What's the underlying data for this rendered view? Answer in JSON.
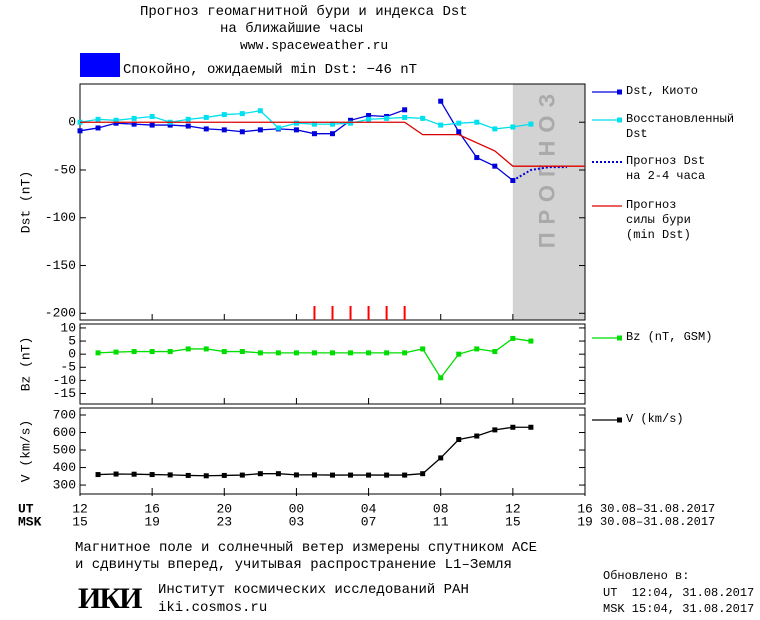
{
  "header": {
    "title": "Прогноз геомагнитной бури и индекса Dst",
    "subtitle": "на ближайшие часы",
    "site": "www.spaceweather.ru",
    "status_color": "#0000ff",
    "status": "Спокойно, ожидаемый min Dst: −46 nT"
  },
  "chart_data": [
    {
      "type": "line",
      "ylabel": "Dst (nT)",
      "xlim": [
        0,
        28
      ],
      "ylim": [
        -207,
        40
      ],
      "yticks": [
        0,
        -50,
        -100,
        -150,
        -200
      ],
      "forecast_region": [
        24,
        28
      ],
      "forecast_label": "ПРОГНОЗ",
      "event_marks_x": [
        13,
        14,
        15,
        16,
        17,
        18
      ],
      "event_color": "#ff0000",
      "series": [
        {
          "name": "Dst, Киото",
          "color": "#0000dd",
          "marker": "square",
          "dash": false,
          "x": [
            0,
            1,
            2,
            3,
            4,
            5,
            6,
            7,
            8,
            9,
            10,
            11,
            12,
            13,
            14,
            15,
            16,
            17,
            18,
            19,
            20,
            21,
            22,
            23,
            24
          ],
          "values": [
            -9,
            -6,
            -1,
            -2,
            -3,
            -3,
            -4,
            -7,
            -8,
            -10,
            -8,
            -7,
            -8,
            -12,
            -12,
            2,
            7,
            6,
            13,
            null,
            22,
            -10,
            -37,
            -46,
            -61
          ]
        },
        {
          "name": "Восстановленный\nDst",
          "color": "#00e0ee",
          "marker": "square",
          "dash": false,
          "x": [
            0,
            1,
            2,
            3,
            4,
            5,
            6,
            7,
            8,
            9,
            10,
            11,
            12,
            13,
            14,
            15,
            16,
            17,
            18,
            19,
            20,
            21,
            22,
            23,
            24,
            25
          ],
          "values": [
            0,
            3,
            2,
            4,
            6,
            0,
            3,
            5,
            8,
            9,
            12,
            -6,
            -1,
            -2,
            -2,
            -1,
            3,
            4,
            5,
            4,
            -3,
            -1,
            0,
            -7,
            -5,
            -2
          ]
        },
        {
          "name": "Прогноз Dst\nна 2-4 часа",
          "color": "#0000dd",
          "marker": null,
          "dash": true,
          "x": [
            24,
            25,
            26,
            27
          ],
          "values": [
            -61,
            -50,
            -47,
            -47
          ]
        },
        {
          "name": "Прогноз\nсилы бури\n(min Dst)",
          "color": "#dd0000",
          "marker": null,
          "dash": false,
          "x": [
            0,
            18,
            19,
            21,
            23,
            24,
            28
          ],
          "values": [
            0,
            0,
            -13,
            -13,
            -30,
            -46,
            -46
          ]
        }
      ]
    },
    {
      "type": "line",
      "ylabel": "Bz (nT)",
      "xlim": [
        0,
        28
      ],
      "ylim": [
        -19,
        11.5
      ],
      "yticks": [
        10,
        5,
        0,
        -5,
        -10,
        -15
      ],
      "series": [
        {
          "name": "Bz (nT, GSM)",
          "color": "#00dd00",
          "marker": "square",
          "dash": false,
          "x": [
            1,
            2,
            3,
            4,
            5,
            6,
            7,
            8,
            9,
            10,
            11,
            12,
            13,
            14,
            15,
            16,
            17,
            18,
            19,
            20,
            21,
            22,
            23,
            24,
            25
          ],
          "values": [
            0.5,
            0.8,
            1,
            1,
            1,
            2,
            2,
            1,
            1,
            0.5,
            0.5,
            0.5,
            0.5,
            0.5,
            0.5,
            0.5,
            0.5,
            0.5,
            2,
            -9,
            0,
            2,
            1,
            6,
            5
          ]
        }
      ]
    },
    {
      "type": "line",
      "ylabel": "V (km/s)",
      "xlim": [
        0,
        28
      ],
      "ylim": [
        249,
        740
      ],
      "yticks": [
        700,
        600,
        500,
        400,
        300
      ],
      "xaxis_labels": [
        "UT",
        "MSK"
      ],
      "date_range": [
        "30.08–31.08.2017",
        "30.08–31.08.2017"
      ],
      "xticks": [
        {
          "value": 0,
          "label": "12"
        },
        {
          "value": 4,
          "label": "16"
        },
        {
          "value": 8,
          "label": "20"
        },
        {
          "value": 12,
          "label": "00"
        },
        {
          "value": 16,
          "label": "04"
        },
        {
          "value": 20,
          "label": "08"
        },
        {
          "value": 24,
          "label": "12"
        },
        {
          "value": 28,
          "label": "16"
        }
      ],
      "msk_xticks": [
        {
          "value": 0,
          "label": "15"
        },
        {
          "value": 4,
          "label": "19"
        },
        {
          "value": 8,
          "label": "23"
        },
        {
          "value": 12,
          "label": "03"
        },
        {
          "value": 16,
          "label": "07"
        },
        {
          "value": 20,
          "label": "11"
        },
        {
          "value": 24,
          "label": "15"
        },
        {
          "value": 28,
          "label": "19"
        }
      ],
      "series": [
        {
          "name": "V (km/s)",
          "color": "#000000",
          "marker": "square",
          "dash": false,
          "x": [
            1,
            2,
            3,
            4,
            5,
            6,
            7,
            8,
            9,
            10,
            11,
            12,
            13,
            14,
            15,
            16,
            17,
            18,
            19,
            20,
            21,
            22,
            23,
            24,
            25
          ],
          "values": [
            360,
            363,
            362,
            360,
            358,
            355,
            353,
            355,
            357,
            365,
            365,
            358,
            358,
            357,
            357,
            357,
            357,
            357,
            365,
            455,
            560,
            580,
            615,
            630,
            630
          ]
        }
      ]
    }
  ],
  "footer": {
    "note1": "Магнитное поле и солнечный ветер измерены спутником ACE",
    "note2": "и сдвинуты вперед, учитывая распространение L1–Земля",
    "logo": "ИКИ",
    "institute": "Институт космических исследований РАН",
    "site": "iki.cosmos.ru",
    "updated": "Обновлено в:",
    "ut": "UT  12:04, 31.08.2017",
    "msk": "MSK 15:04, 31.08.2017"
  }
}
